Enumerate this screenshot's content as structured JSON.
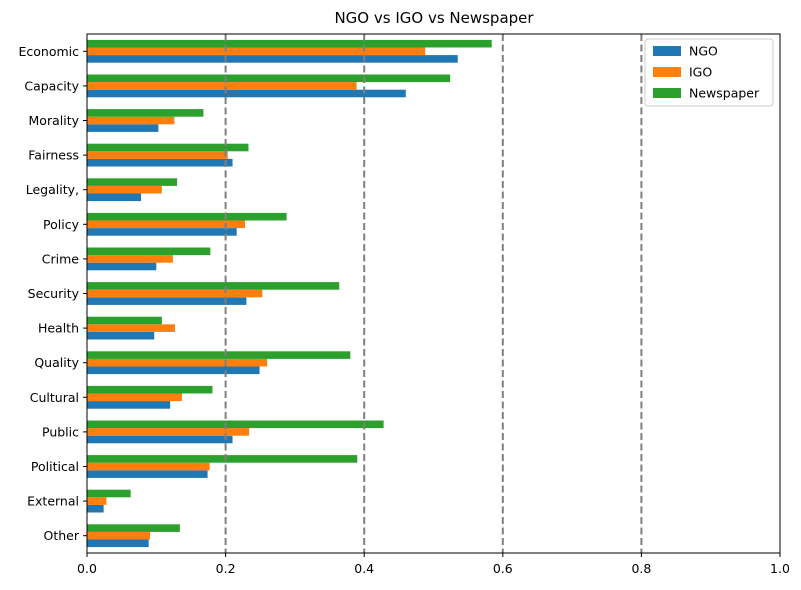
{
  "chart_data": {
    "type": "bar",
    "orientation": "horizontal",
    "title": "NGO vs IGO vs Newspaper",
    "xlabel": "",
    "ylabel": "",
    "xlim": [
      0,
      1.0
    ],
    "xticks": [
      "0.0",
      "0.2",
      "0.4",
      "0.6",
      "0.8",
      "1.0"
    ],
    "reference_lines": [
      0.2,
      0.4,
      0.6,
      0.8
    ],
    "categories": [
      "Economic",
      "Capacity",
      "Morality",
      "Fairness",
      "Legality,",
      "Policy",
      "Crime",
      "Security",
      "Health",
      "Quality",
      "Cultural",
      "Public",
      "Political",
      "External",
      "Other"
    ],
    "series": [
      {
        "name": "NGO",
        "color": "#1f77b4",
        "values": [
          0.535,
          0.46,
          0.103,
          0.21,
          0.078,
          0.216,
          0.1,
          0.23,
          0.097,
          0.249,
          0.12,
          0.21,
          0.174,
          0.024,
          0.089
        ]
      },
      {
        "name": "IGO",
        "color": "#ff7f0e",
        "values": [
          0.488,
          0.389,
          0.126,
          0.203,
          0.108,
          0.228,
          0.124,
          0.253,
          0.127,
          0.26,
          0.137,
          0.234,
          0.177,
          0.028,
          0.091
        ]
      },
      {
        "name": "Newspaper",
        "color": "#2ca02c",
        "values": [
          0.584,
          0.524,
          0.168,
          0.233,
          0.13,
          0.288,
          0.178,
          0.364,
          0.108,
          0.38,
          0.181,
          0.428,
          0.39,
          0.063,
          0.134
        ]
      }
    ],
    "grid": false,
    "legend_position": "top-right"
  }
}
